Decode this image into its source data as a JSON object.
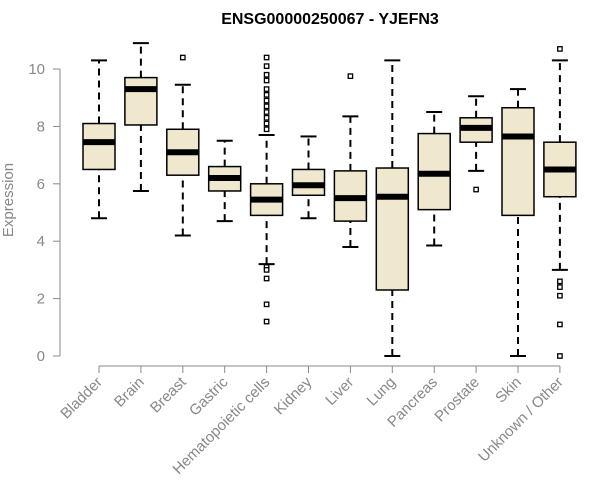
{
  "chart_data": {
    "type": "boxplot",
    "title": "ENSG00000250067 - YJEFN3",
    "ylabel": "Expression",
    "xlabel": "",
    "ylim": [
      0,
      10.9
    ],
    "yticks": [
      0,
      2,
      4,
      6,
      8,
      10
    ],
    "grid": false,
    "colors": {
      "box_fill": "#efe8cf",
      "stroke": "#000000",
      "axis": "#888888"
    },
    "categories": [
      "Bladder",
      "Brain",
      "Breast",
      "Gastric",
      "Hematopoietic cells",
      "Kidney",
      "Liver",
      "Lung",
      "Pancreas",
      "Prostate",
      "Skin",
      "Unknown / Other"
    ],
    "boxes": [
      {
        "category": "Bladder",
        "whisker_low": 4.8,
        "q1": 6.5,
        "median": 7.45,
        "q3": 8.1,
        "whisker_high": 10.3,
        "outliers": []
      },
      {
        "category": "Brain",
        "whisker_low": 5.75,
        "q1": 8.05,
        "median": 9.3,
        "q3": 9.7,
        "whisker_high": 10.9,
        "outliers": []
      },
      {
        "category": "Breast",
        "whisker_low": 4.2,
        "q1": 6.3,
        "median": 7.1,
        "q3": 7.9,
        "whisker_high": 9.45,
        "outliers": [
          10.4
        ]
      },
      {
        "category": "Gastric",
        "whisker_low": 4.7,
        "q1": 5.75,
        "median": 6.2,
        "q3": 6.6,
        "whisker_high": 7.5,
        "outliers": []
      },
      {
        "category": "Hematopoietic cells",
        "whisker_low": 3.2,
        "q1": 4.9,
        "median": 5.45,
        "q3": 6.0,
        "whisker_high": 7.7,
        "outliers": [
          10.4,
          10.1,
          9.8,
          9.6,
          9.3,
          9.1,
          8.9,
          8.7,
          8.5,
          8.3,
          8.1,
          7.9,
          3.1,
          3.0,
          2.7,
          1.8,
          1.2
        ]
      },
      {
        "category": "Kidney",
        "whisker_low": 4.8,
        "q1": 5.6,
        "median": 5.95,
        "q3": 6.5,
        "whisker_high": 7.65,
        "outliers": []
      },
      {
        "category": "Liver",
        "whisker_low": 3.8,
        "q1": 4.7,
        "median": 5.5,
        "q3": 6.45,
        "whisker_high": 8.35,
        "outliers": [
          9.75
        ]
      },
      {
        "category": "Lung",
        "whisker_low": 0.0,
        "q1": 2.3,
        "median": 5.55,
        "q3": 6.55,
        "whisker_high": 10.3,
        "outliers": []
      },
      {
        "category": "Pancreas",
        "whisker_low": 3.85,
        "q1": 5.1,
        "median": 6.35,
        "q3": 7.75,
        "whisker_high": 8.5,
        "outliers": []
      },
      {
        "category": "Prostate",
        "whisker_low": 6.45,
        "q1": 7.45,
        "median": 7.95,
        "q3": 8.3,
        "whisker_high": 9.05,
        "outliers": [
          5.8
        ]
      },
      {
        "category": "Skin",
        "whisker_low": 0.0,
        "q1": 4.9,
        "median": 7.65,
        "q3": 8.65,
        "whisker_high": 9.3,
        "outliers": []
      },
      {
        "category": "Unknown / Other",
        "whisker_low": 3.0,
        "q1": 5.55,
        "median": 6.5,
        "q3": 7.45,
        "whisker_high": 10.3,
        "outliers": [
          10.7,
          2.6,
          2.4,
          2.1,
          1.1,
          0.0
        ]
      }
    ]
  }
}
